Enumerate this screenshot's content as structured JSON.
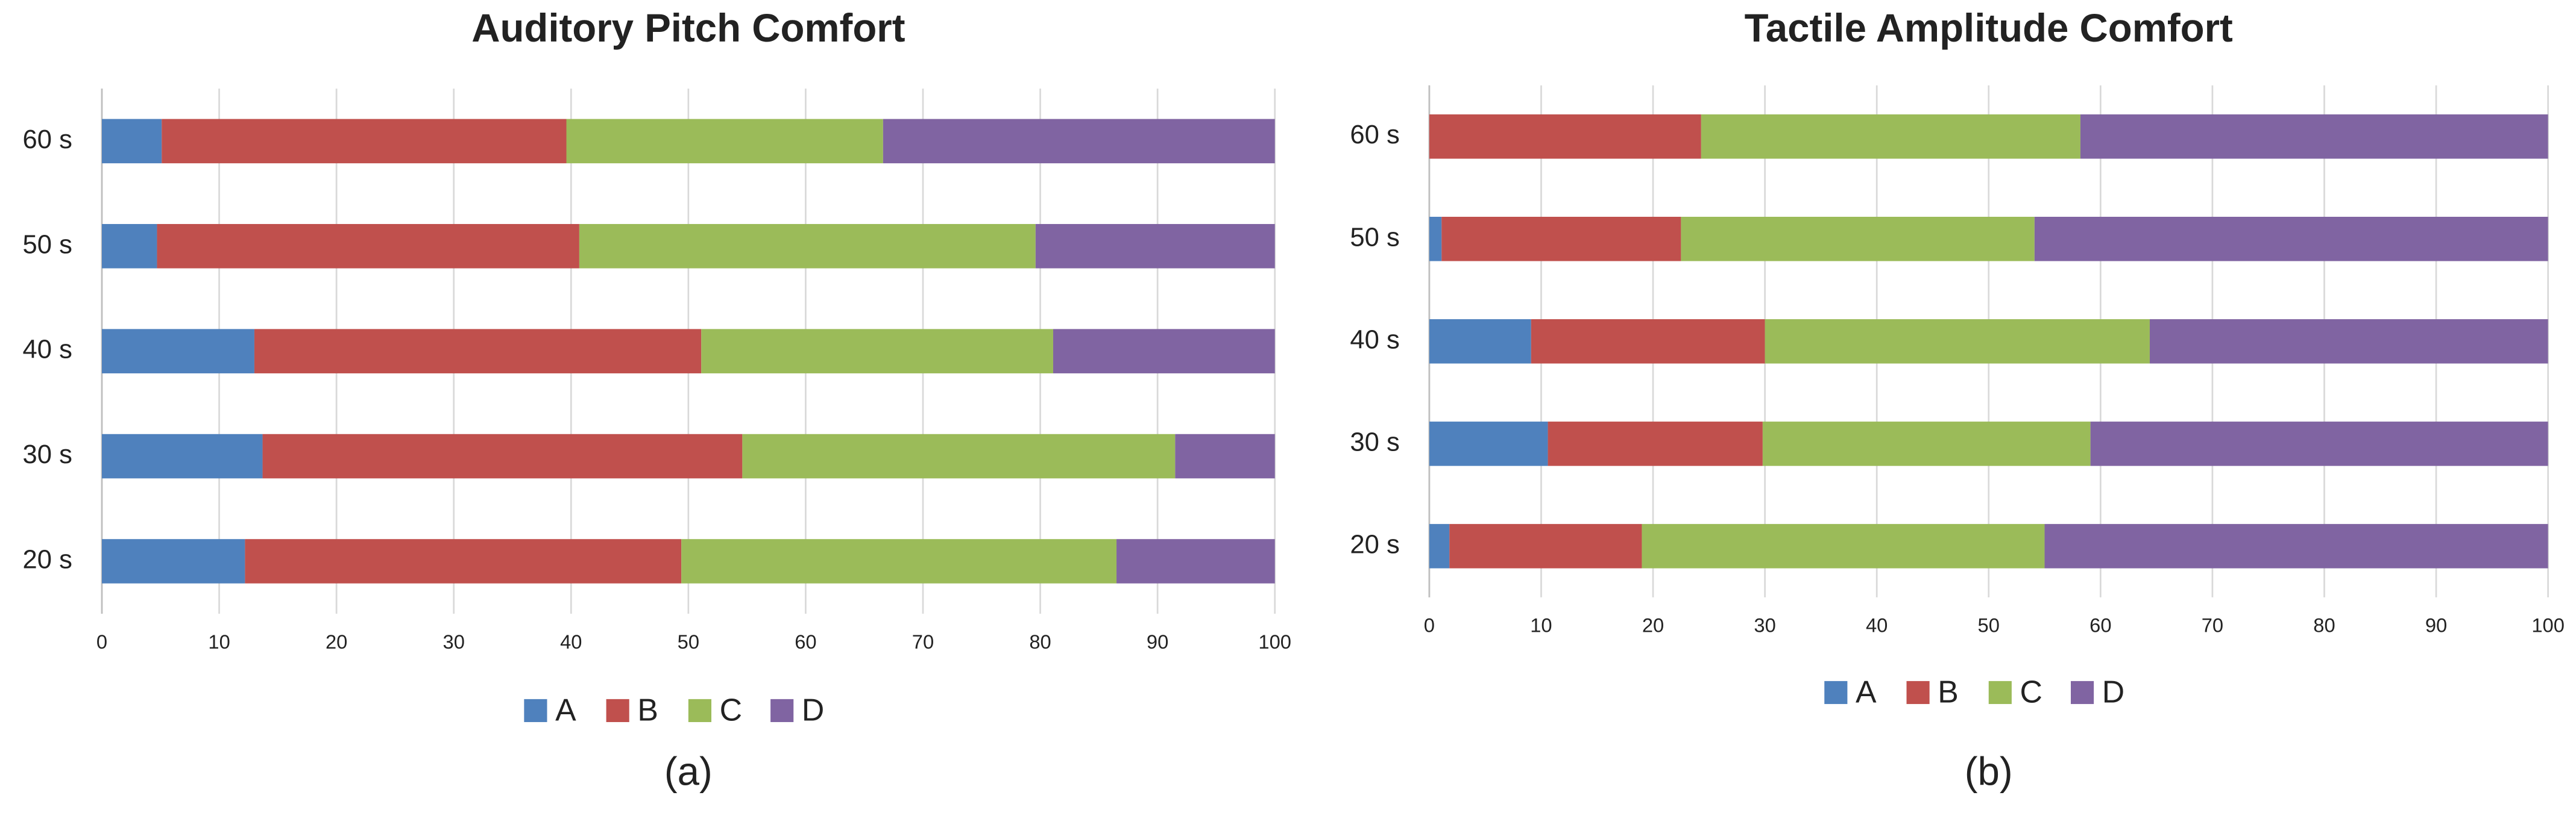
{
  "chart_data": [
    {
      "type": "bar",
      "orientation": "horizontal",
      "stacked": true,
      "title": "Auditory Pitch Comfort",
      "caption": "(a)",
      "categories": [
        "20 s",
        "30 s",
        "40 s",
        "50 s",
        "60 s"
      ],
      "series": [
        {
          "name": "A",
          "color": "#4f81bd",
          "values": [
            12.2,
            13.7,
            13.0,
            4.7,
            5.1
          ]
        },
        {
          "name": "B",
          "color": "#c0504d",
          "values": [
            37.2,
            40.9,
            38.1,
            36.0,
            34.5
          ]
        },
        {
          "name": "C",
          "color": "#9bbb59",
          "values": [
            37.1,
            36.9,
            30.0,
            38.9,
            27.0
          ]
        },
        {
          "name": "D",
          "color": "#8064a2",
          "values": [
            13.5,
            8.5,
            18.9,
            20.4,
            33.4
          ]
        }
      ],
      "xlim": [
        0,
        100
      ],
      "xticks": [
        0,
        10,
        20,
        30,
        40,
        50,
        60,
        70,
        80,
        90,
        100
      ],
      "grid": true
    },
    {
      "type": "bar",
      "orientation": "horizontal",
      "stacked": true,
      "title": "Tactile Amplitude Comfort",
      "caption": "(b)",
      "categories": [
        "20 s",
        "30 s",
        "40 s",
        "50 s",
        "60 s"
      ],
      "series": [
        {
          "name": "A",
          "color": "#4f81bd",
          "values": [
            1.8,
            10.6,
            9.1,
            1.1,
            0
          ]
        },
        {
          "name": "B",
          "color": "#c0504d",
          "values": [
            17.2,
            19.2,
            20.9,
            21.4,
            24.3
          ]
        },
        {
          "name": "C",
          "color": "#9bbb59",
          "values": [
            36.0,
            29.3,
            34.4,
            31.6,
            33.9
          ]
        },
        {
          "name": "D",
          "color": "#8064a2",
          "values": [
            45.0,
            40.9,
            35.6,
            45.9,
            41.8
          ]
        }
      ],
      "xlim": [
        0,
        100
      ],
      "xticks": [
        0,
        10,
        20,
        30,
        40,
        50,
        60,
        70,
        80,
        90,
        100
      ],
      "grid": true
    }
  ]
}
